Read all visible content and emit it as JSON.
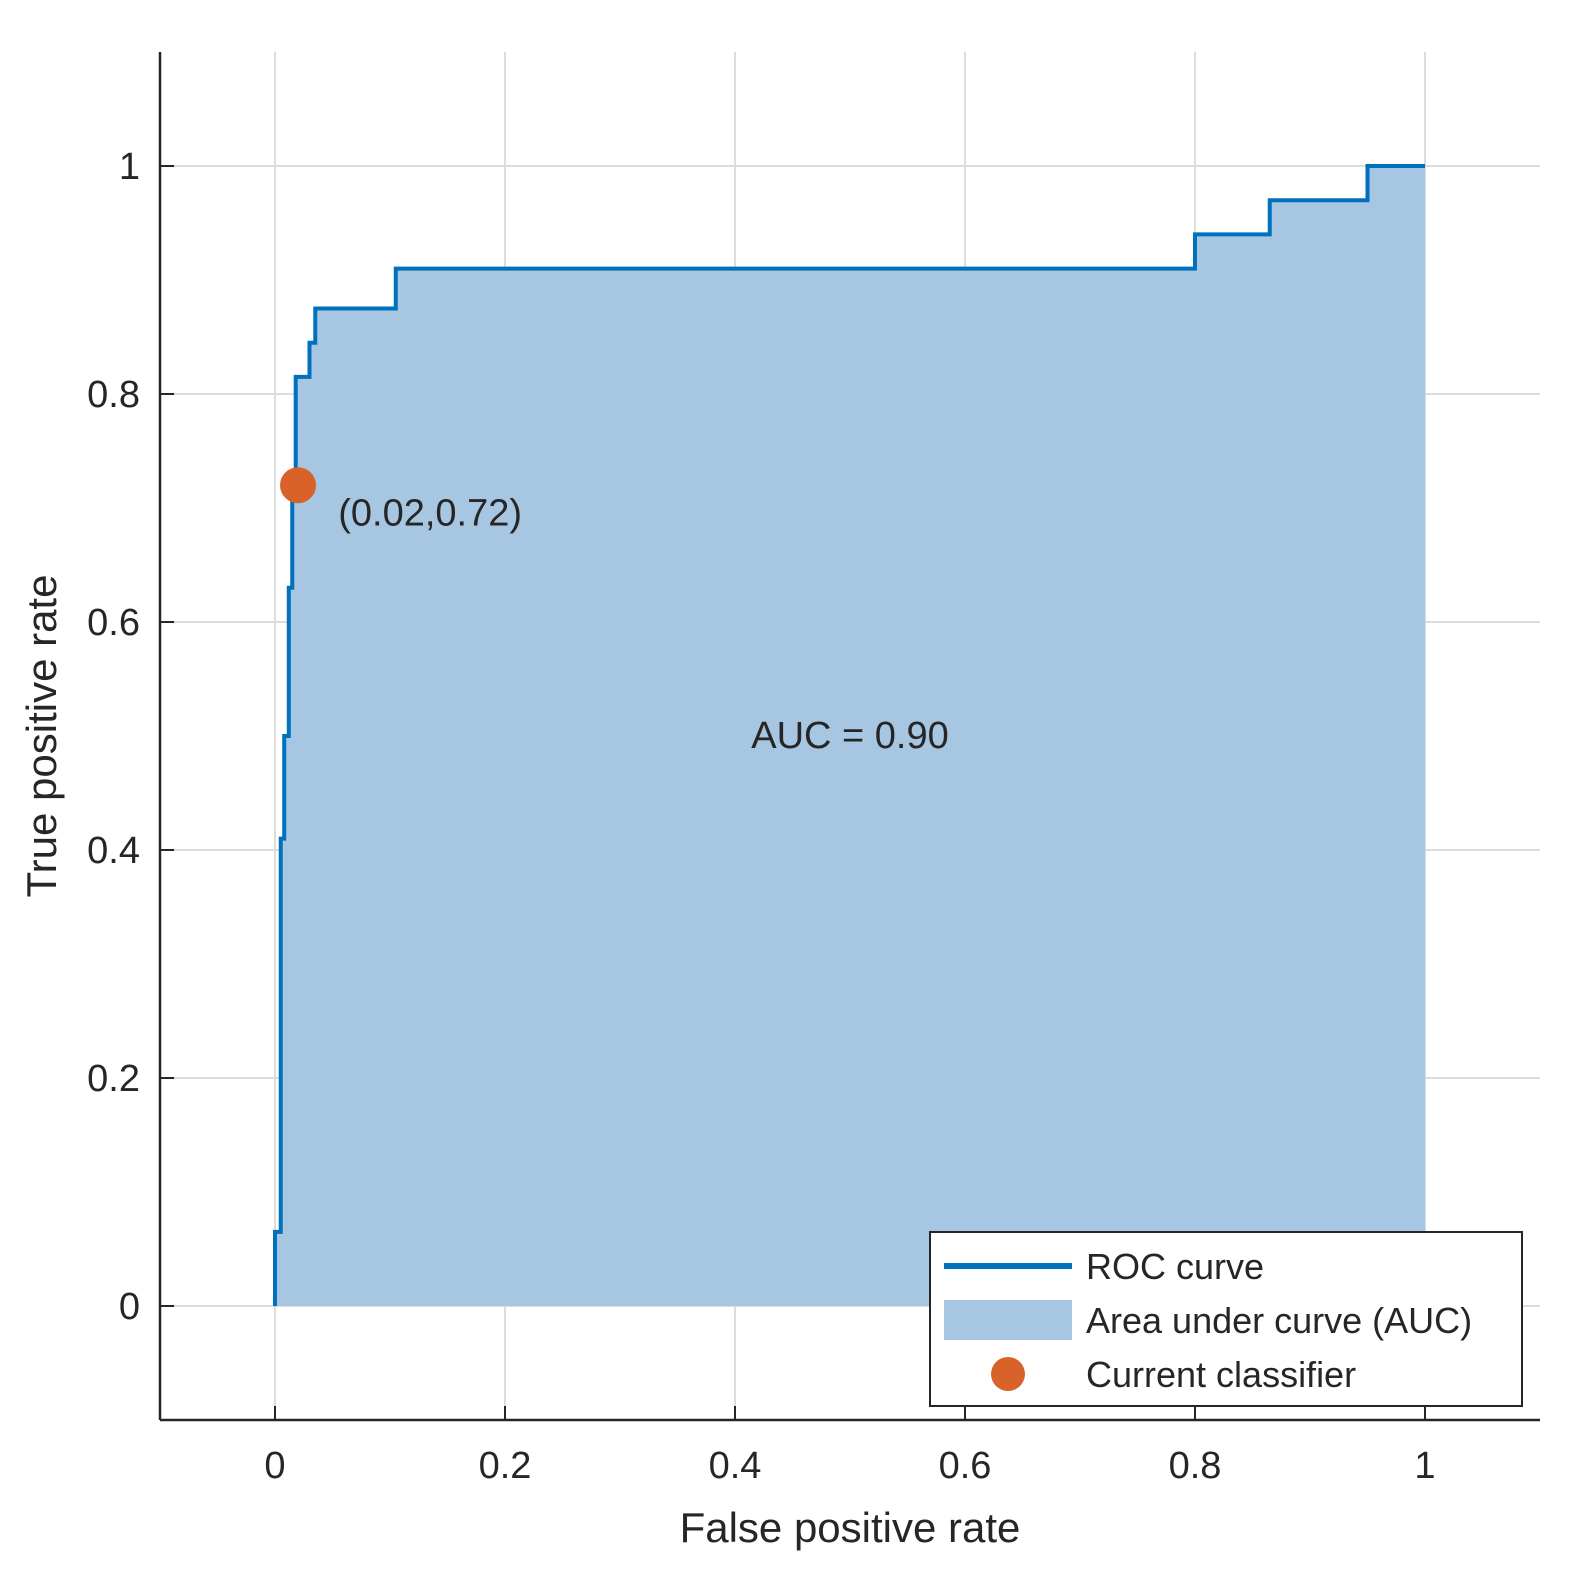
{
  "chart_data": {
    "type": "area",
    "title": "",
    "xlabel": "False positive rate",
    "ylabel": "True positive rate",
    "xlim": [
      -0.1,
      1.1
    ],
    "ylim": [
      -0.1,
      1.1
    ],
    "grid": true,
    "x_ticks": [
      0,
      0.2,
      0.4,
      0.6,
      0.8,
      1
    ],
    "x_tick_labels": [
      "0",
      "0.2",
      "0.4",
      "0.6",
      "0.8",
      "1"
    ],
    "y_ticks": [
      0,
      0.2,
      0.4,
      0.6,
      0.8,
      1
    ],
    "y_tick_labels": [
      "0",
      "0.2",
      "0.4",
      "0.6",
      "0.8",
      "1"
    ],
    "series": [
      {
        "name": "ROC curve",
        "kind": "step-line",
        "color": "#0072bd",
        "x": [
          0,
          0,
          0.005,
          0.005,
          0.008,
          0.008,
          0.012,
          0.012,
          0.015,
          0.015,
          0.018,
          0.018,
          0.02,
          0.02,
          0.03,
          0.03,
          0.035,
          0.035,
          0.04,
          0.04,
          0.105,
          0.105,
          0.8,
          0.8,
          0.865,
          0.865,
          0.95,
          0.95,
          1
        ],
        "y": [
          0,
          0.065,
          0.065,
          0.41,
          0.41,
          0.5,
          0.5,
          0.63,
          0.63,
          0.72,
          0.72,
          0.815,
          0.815,
          0.815,
          0.815,
          0.845,
          0.845,
          0.875,
          0.875,
          0.875,
          0.875,
          0.91,
          0.91,
          0.94,
          0.94,
          0.97,
          0.97,
          1.0,
          1.0
        ]
      },
      {
        "name": "Area under curve (AUC)",
        "kind": "fill-under",
        "color": "#a6c6e2"
      },
      {
        "name": "Current classifier",
        "kind": "point",
        "color": "#d9622b",
        "x": [
          0.02
        ],
        "y": [
          0.72
        ]
      }
    ],
    "annotations": [
      {
        "text": "(0.02,0.72)",
        "x": 0.055,
        "y": 0.695
      },
      {
        "text": "AUC = 0.90",
        "x": 0.5,
        "y": 0.5
      }
    ],
    "legend": {
      "position": "bottom-right",
      "entries": [
        "ROC curve",
        "Area under curve (AUC)",
        "Current classifier"
      ]
    }
  }
}
